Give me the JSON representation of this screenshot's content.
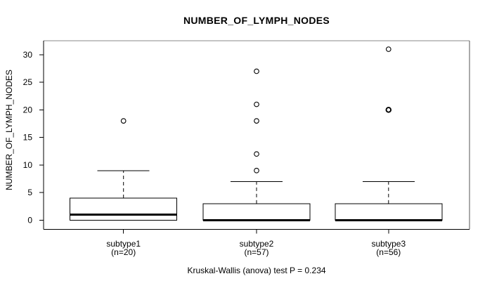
{
  "figure": {
    "background_color": "#ffffff",
    "line_color": "#000000",
    "frame_color": "#888888"
  },
  "chart_data": {
    "type": "boxplot",
    "title": "NUMBER_OF_LYMPH_NODES",
    "ylabel": "NUMBER_OF_LYMPH_NODES",
    "xlabel": "",
    "caption": "Kruskal-Wallis (anova) test P = 0.234",
    "test_name": "Kruskal-Wallis (anova)",
    "p_value": "0.234",
    "grid": false,
    "legend": "none",
    "ylim": [
      0,
      31
    ],
    "yticks": [
      0,
      5,
      10,
      15,
      20,
      25,
      30
    ],
    "groups": [
      {
        "label": "subtype1",
        "sublabel": "(n=20)",
        "n": 20,
        "whisker_low": 0,
        "q1": 0,
        "median": 1,
        "q3": 4,
        "whisker_high": 9,
        "outliers": [
          {
            "value": 18,
            "bold": false
          }
        ]
      },
      {
        "label": "subtype2",
        "sublabel": "(n=57)",
        "n": 57,
        "whisker_low": 0,
        "q1": 0,
        "median": 0,
        "q3": 3,
        "whisker_high": 7,
        "outliers": [
          {
            "value": 9,
            "bold": false
          },
          {
            "value": 12,
            "bold": false
          },
          {
            "value": 18,
            "bold": false
          },
          {
            "value": 21,
            "bold": false
          },
          {
            "value": 27,
            "bold": false
          }
        ]
      },
      {
        "label": "subtype3",
        "sublabel": "(n=56)",
        "n": 56,
        "whisker_low": 0,
        "q1": 0,
        "median": 0,
        "q3": 3,
        "whisker_high": 7,
        "outliers": [
          {
            "value": 20,
            "bold": true
          },
          {
            "value": 31,
            "bold": false
          }
        ]
      }
    ]
  }
}
